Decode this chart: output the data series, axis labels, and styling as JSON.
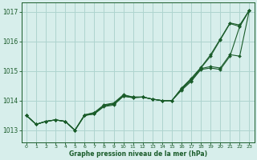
{
  "xlabel": "Graphe pression niveau de la mer (hPa)",
  "xlim": [
    -0.5,
    23.5
  ],
  "ylim": [
    1012.6,
    1017.3
  ],
  "yticks": [
    1013,
    1014,
    1015,
    1016,
    1017
  ],
  "xticks": [
    0,
    1,
    2,
    3,
    4,
    5,
    6,
    7,
    8,
    9,
    10,
    11,
    12,
    13,
    14,
    15,
    16,
    17,
    18,
    19,
    20,
    21,
    22,
    23
  ],
  "background_color": "#d7eeeb",
  "grid_color": "#aed4cf",
  "line_color": "#1a5c2a",
  "marker_color": "#1a5c2a",
  "series": [
    [
      1013.5,
      1013.2,
      1013.3,
      1013.35,
      1013.3,
      1013.0,
      1013.5,
      1013.55,
      1013.8,
      1013.85,
      1014.15,
      1014.1,
      1014.12,
      1014.05,
      1014.0,
      1014.0,
      1014.35,
      1014.65,
      1015.05,
      1015.1,
      1015.05,
      1015.5,
      1016.5,
      1017.05
    ],
    [
      1013.5,
      1013.2,
      1013.3,
      1013.35,
      1013.3,
      1013.0,
      1013.5,
      1013.55,
      1013.82,
      1013.88,
      1014.15,
      1014.1,
      1014.12,
      1014.05,
      1014.0,
      1014.0,
      1014.38,
      1014.68,
      1015.08,
      1015.15,
      1015.1,
      1015.55,
      1015.5,
      1017.05
    ],
    [
      1013.5,
      1013.2,
      1013.3,
      1013.35,
      1013.3,
      1013.0,
      1013.52,
      1013.58,
      1013.84,
      1013.9,
      1014.18,
      1014.12,
      1014.12,
      1014.05,
      1014.0,
      1014.0,
      1014.4,
      1014.72,
      1015.1,
      1015.5,
      1016.05,
      1016.6,
      1016.5,
      1017.05
    ],
    [
      1013.5,
      1013.2,
      1013.3,
      1013.35,
      1013.3,
      1013.0,
      1013.52,
      1013.6,
      1013.86,
      1013.92,
      1014.2,
      1014.12,
      1014.12,
      1014.05,
      1014.0,
      1014.0,
      1014.42,
      1014.75,
      1015.12,
      1015.55,
      1016.08,
      1016.62,
      1016.55,
      1017.05
    ]
  ]
}
